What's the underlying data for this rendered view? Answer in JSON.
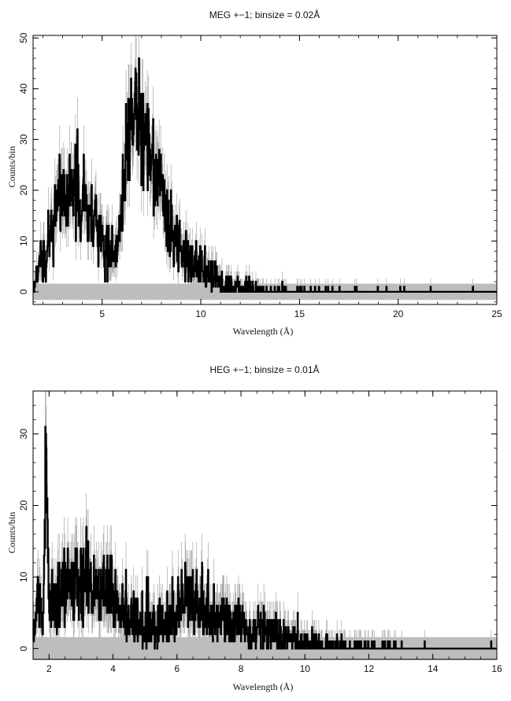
{
  "chart_data": [
    {
      "type": "line",
      "title": "MEG +−1; binsize = 0.02Å",
      "xlabel": "Wavelength (Å)",
      "ylabel": "Counts/bin",
      "xlim": [
        1.5,
        25
      ],
      "ylim": [
        -2.5,
        50.5
      ],
      "xticks": [
        5,
        10,
        15,
        20,
        25
      ],
      "yticks": [
        0,
        10,
        20,
        30,
        40,
        50
      ],
      "grid": false,
      "legend": "none",
      "series": [
        {
          "x": [
            1.5,
            1.75,
            2.0,
            2.25,
            2.5,
            2.75,
            3.0,
            3.25,
            3.5,
            3.75,
            4.0,
            4.25,
            4.5,
            4.75,
            5.0,
            5.25,
            5.5,
            5.75,
            6.0,
            6.25,
            6.5,
            6.75,
            7.0,
            7.25,
            7.5,
            7.75,
            8.0,
            8.25,
            8.5,
            8.75,
            9.0,
            9.5,
            10.0,
            10.5,
            11.0,
            11.5,
            12.0,
            12.5,
            13.0,
            14.0,
            15.0,
            17.0,
            20.0,
            25.0
          ],
          "values": [
            0,
            3,
            6,
            9,
            13,
            17,
            20,
            21,
            21,
            19,
            18,
            16,
            15,
            14,
            12,
            9,
            7,
            8,
            17,
            31,
            33,
            34,
            33,
            29,
            25,
            22,
            19,
            15,
            12,
            10,
            8,
            6,
            4.5,
            3,
            2,
            1.3,
            0.9,
            0.6,
            0.4,
            0.2,
            0.1,
            0.05,
            0.03,
            0.02
          ]
        }
      ]
    },
    {
      "type": "line",
      "title": "HEG +−1; binsize = 0.01Å",
      "xlabel": "Wavelength (Å)",
      "ylabel": "Counts/bin",
      "xlim": [
        1.5,
        16
      ],
      "ylim": [
        -1.5,
        36
      ],
      "xticks": [
        2,
        4,
        6,
        8,
        10,
        12,
        14,
        16
      ],
      "yticks": [
        0,
        10,
        20,
        30
      ],
      "grid": false,
      "legend": "none",
      "series": [
        {
          "x": [
            1.5,
            1.6,
            1.7,
            1.8,
            1.85,
            1.9,
            1.95,
            2.0,
            2.1,
            2.2,
            2.4,
            2.6,
            2.8,
            3.0,
            3.2,
            3.4,
            3.6,
            3.8,
            4.0,
            4.2,
            4.4,
            4.6,
            4.8,
            5.0,
            5.2,
            5.4,
            5.6,
            5.8,
            6.0,
            6.2,
            6.4,
            6.6,
            6.8,
            7.0,
            7.2,
            7.4,
            7.6,
            7.8,
            8.0,
            8.3,
            8.6,
            8.9,
            9.2,
            9.5,
            9.8,
            10.0,
            10.5,
            11.0,
            12.0,
            13.0,
            14.0,
            16.0
          ],
          "values": [
            1,
            5,
            7,
            5,
            14,
            28,
            15,
            6,
            5,
            6,
            8,
            9,
            9.5,
            9.5,
            9,
            8.5,
            8,
            7.5,
            7,
            5.5,
            4,
            3,
            3,
            3,
            3.5,
            3.5,
            4,
            4.5,
            5,
            6,
            6.5,
            6.5,
            6,
            5,
            4.5,
            4,
            3.8,
            3.5,
            3.3,
            3,
            2.8,
            2.5,
            2,
            1.5,
            0.8,
            0.5,
            0.35,
            0.2,
            0.1,
            0.06,
            0.04,
            0.02
          ]
        }
      ]
    }
  ]
}
